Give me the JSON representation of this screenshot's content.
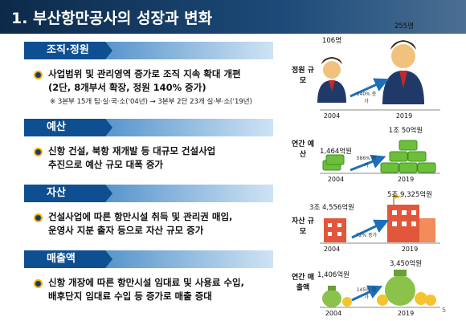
{
  "header": {
    "title": "1. 부산항만공사의 성장과 변화"
  },
  "sections": [
    {
      "title": "조직·정원",
      "lines": [
        "사업범위 및 관리영역 증가로 조직 지속 확대 개편",
        "(2단, 8개부서 확장, 정원 140% 증가)"
      ],
      "note": "※ 3본부 15개 팀·실·국·소('04년) → 3본부 2단 23개 실·부·소('19년)"
    },
    {
      "title": "예산",
      "lines": [
        "신항 건설, 북항 재개발 등 대규모 건설사업",
        "추진으로 예산 규모 대폭 증가"
      ]
    },
    {
      "title": "자산",
      "lines": [
        "건설사업에 따른 항만시설 취득 및 관리권 매입,",
        "운영사 지분 출자 등으로 자산 규모 증가"
      ]
    },
    {
      "title": "매출액",
      "lines": [
        "신항 개장에 따른 항만시설 임대료 및 사용료 수입,",
        "배후단지 임대료 수입 등 증가로 매출 증대"
      ]
    }
  ],
  "stats": [
    {
      "label": "정원 규모",
      "start_value": "106명",
      "end_value": "255명",
      "growth": "140% 증가",
      "start_year": "2004",
      "end_year": "2019"
    },
    {
      "label": "연간 예산",
      "start_value": "1,464억원",
      "end_value": "1조 50억원",
      "growth": "586% 증가",
      "start_year": "2004",
      "end_year": "2019"
    },
    {
      "label": "자산 규모",
      "start_value": "3조 4,556억원",
      "end_value": "5조 9,325억원",
      "growth": "72% 증가",
      "start_year": "2004",
      "end_year": "2019"
    },
    {
      "label": "연간 매출액",
      "start_value": "1,406억원",
      "end_value": "3,450억원",
      "growth": "145% 증가",
      "start_year": "2004",
      "end_year": "2019"
    }
  ],
  "page_number": "5"
}
